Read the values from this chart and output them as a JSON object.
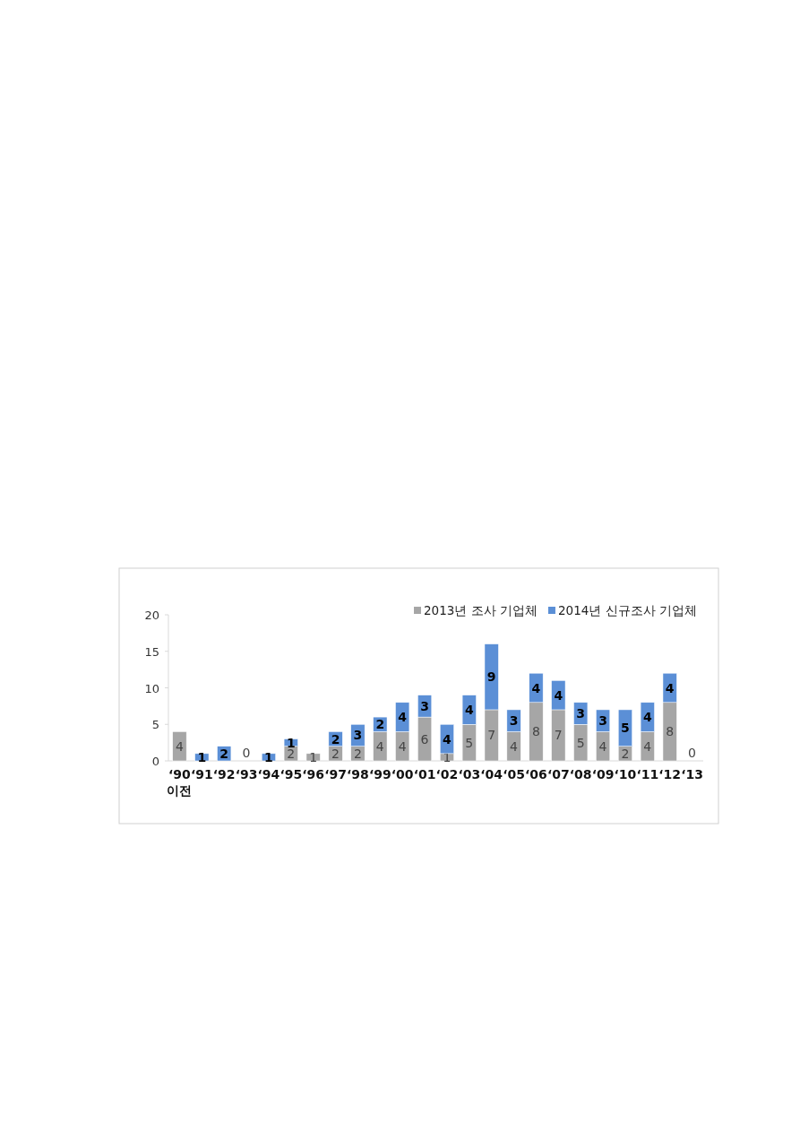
{
  "chart_data": {
    "type": "bar",
    "stacked": true,
    "legend": "top right",
    "grid": false,
    "categories": [
      "‘90 이전",
      "‘91",
      "‘92",
      "‘93",
      "‘94",
      "‘95",
      "‘96",
      "‘97",
      "‘98",
      "‘99",
      "‘00",
      "‘01",
      "‘02",
      "‘03",
      "‘04",
      "‘05",
      "‘06",
      "‘07",
      "‘08",
      "‘09",
      "‘10",
      "‘11",
      "‘12",
      "‘13"
    ],
    "ylim": [
      0,
      20
    ],
    "yticks": [
      0,
      5,
      10,
      15,
      20
    ],
    "series": [
      {
        "name": "2013년 조사 기업체",
        "color": "#a6a6a6",
        "values": [
          4,
          0,
          0,
          0,
          0,
          2,
          1,
          2,
          2,
          4,
          4,
          6,
          1,
          5,
          7,
          4,
          8,
          7,
          5,
          4,
          2,
          4,
          8,
          0
        ],
        "value_labels": [
          "4",
          null,
          null,
          "0",
          null,
          "2",
          "1",
          "2",
          "2",
          "4",
          "4",
          "6",
          "1",
          "5",
          "7",
          "4",
          "8",
          "7",
          "5",
          "4",
          "2",
          "4",
          "8",
          "0"
        ]
      },
      {
        "name": "2014년 신규조사 기업체",
        "color": "#5b8fd6",
        "values": [
          0,
          1,
          2,
          0,
          1,
          1,
          0,
          2,
          3,
          2,
          4,
          3,
          4,
          4,
          9,
          3,
          4,
          4,
          3,
          3,
          5,
          4,
          4,
          0
        ],
        "value_labels": [
          null,
          "1",
          "2",
          null,
          "1",
          "1",
          null,
          "2",
          "3",
          "2",
          "4",
          "3",
          "4",
          "4",
          "9",
          "3",
          "4",
          "4",
          "3",
          "3",
          "5",
          "4",
          "4",
          null
        ]
      }
    ]
  }
}
